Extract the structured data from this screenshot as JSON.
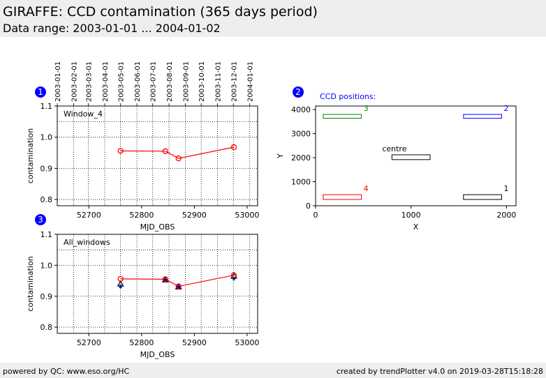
{
  "page": {
    "title": "GIRAFFE: CCD contamination (365 days period)",
    "subtitle": "Data range: 2003-01-01 ... 2004-01-02"
  },
  "footer": {
    "left": "powered by QC: www.eso.org/HC",
    "right": "created by trendPlotter v4.0 on 2019-03-28T15:18:28"
  },
  "colors": {
    "badge": "#0000ff",
    "series_red": "#ff0000",
    "series_blue": "#0000ff",
    "series_black": "#000000",
    "series_green": "#008000",
    "series_cyan": "#00aaaa"
  },
  "chart_data": [
    {
      "id": "1",
      "type": "line",
      "annotation": "Window_4",
      "xlabel": "MJD_OBS",
      "ylabel": "contamination",
      "xlim": [
        52640,
        53020
      ],
      "ylim": [
        0.78,
        1.1
      ],
      "xticks": [
        52700,
        52800,
        52900,
        53000
      ],
      "yticks": [
        0.8,
        0.9,
        1.0,
        1.1
      ],
      "top_axis_dates": [
        "2003-01-01",
        "2003-02-01",
        "2003-03-01",
        "2003-04-01",
        "2003-05-01",
        "2003-06-01",
        "2003-07-01",
        "2003-08-01",
        "2003-09-01",
        "2003-10-01",
        "2003-11-01",
        "2003-12-01",
        "2004-01-01"
      ],
      "top_axis_mjd": [
        52640,
        52671,
        52699,
        52730,
        52760,
        52791,
        52821,
        52852,
        52883,
        52913,
        52944,
        52974,
        53005
      ],
      "reference_line": 1.05,
      "series": [
        {
          "color": "#ff0000",
          "marker": "o",
          "x": [
            52760,
            52845,
            52870,
            52975
          ],
          "y": [
            0.956,
            0.955,
            0.932,
            0.968
          ]
        }
      ]
    },
    {
      "id": "2",
      "type": "diagram",
      "title": "CCD positions:",
      "xlabel": "X",
      "ylabel": "Y",
      "xlim": [
        0,
        2100
      ],
      "ylim": [
        0,
        4150
      ],
      "xticks": [
        0,
        1000,
        2000
      ],
      "yticks": [
        0,
        1000,
        2000,
        3000,
        4000
      ],
      "boxes": [
        {
          "label": "1",
          "color": "#000000",
          "x0": 1550,
          "x1": 1950,
          "y0": 260,
          "y1": 460
        },
        {
          "label": "2",
          "color": "#0000ff",
          "x0": 1550,
          "x1": 1950,
          "y0": 3640,
          "y1": 3800
        },
        {
          "label": "3",
          "color": "#008000",
          "x0": 80,
          "x1": 480,
          "y0": 3640,
          "y1": 3800
        },
        {
          "label": "4",
          "color": "#ff0000",
          "x0": 80,
          "x1": 480,
          "y0": 260,
          "y1": 460
        },
        {
          "label": "centre",
          "color": "#000000",
          "x0": 800,
          "x1": 1200,
          "y0": 1920,
          "y1": 2120
        }
      ]
    },
    {
      "id": "3",
      "type": "line",
      "annotation": "All_windows",
      "xlabel": "MJD_OBS",
      "ylabel": "contamination",
      "xlim": [
        52640,
        53020
      ],
      "ylim": [
        0.78,
        1.1
      ],
      "xticks": [
        52700,
        52800,
        52900,
        53000
      ],
      "yticks": [
        0.8,
        0.9,
        1.0,
        1.1
      ],
      "reference_line": 1.05,
      "series": [
        {
          "color": "#ff0000",
          "marker": "o",
          "x": [
            52760,
            52845,
            52870,
            52975
          ],
          "y": [
            0.956,
            0.955,
            0.932,
            0.968
          ]
        },
        {
          "color": "#000000",
          "marker": "^",
          "x": [
            52760,
            52845,
            52870,
            52975
          ],
          "y": [
            0.94,
            0.953,
            0.93,
            0.965
          ]
        },
        {
          "color": "#0000ff",
          "marker": ".",
          "x": [
            52760,
            52845,
            52870,
            52975
          ],
          "y": [
            0.93,
            0.952,
            0.928,
            0.958
          ]
        },
        {
          "color": "#00aaaa",
          "marker": ".",
          "x": [
            52760,
            52845,
            52870,
            52975
          ],
          "y": [
            0.935,
            0.95,
            0.93,
            0.955
          ]
        }
      ]
    }
  ]
}
